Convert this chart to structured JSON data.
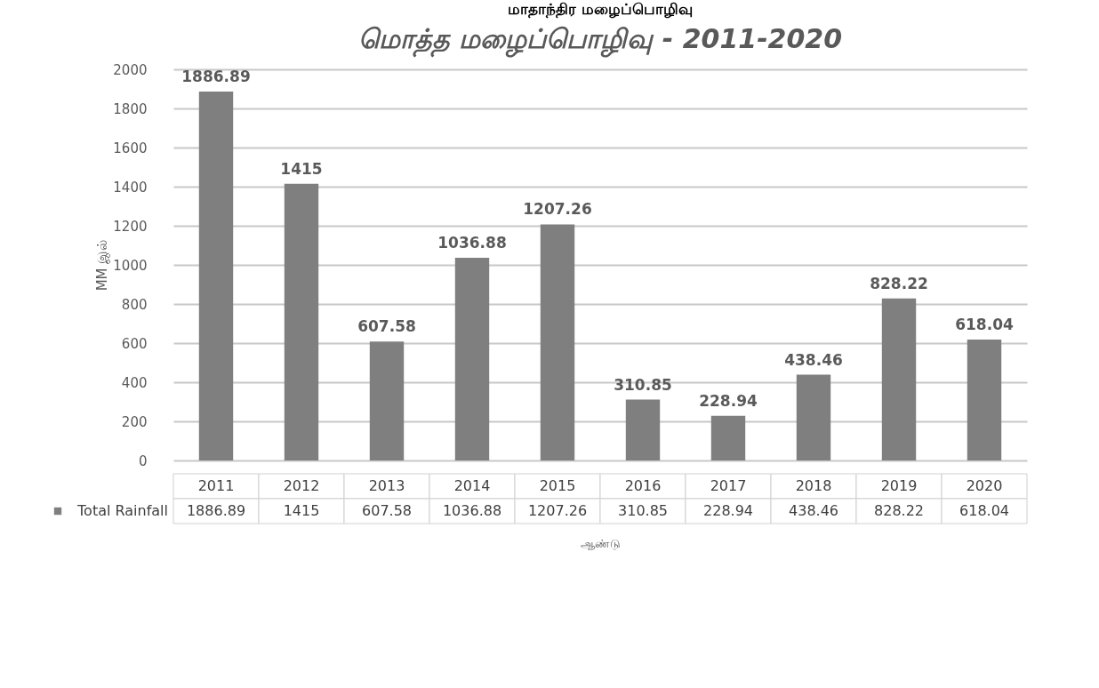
{
  "chart_data": {
    "type": "bar",
    "title": "மொத்த மழைப்பொழிவு - 2011-2020",
    "annotations": [
      "மாதாந்திர மழைப்பொழிவு"
    ],
    "xlabel": "ஆண்டு",
    "ylabel": "MM இல்",
    "categories": [
      "2011",
      "2012",
      "2013",
      "2014",
      "2015",
      "2016",
      "2017",
      "2018",
      "2019",
      "2020"
    ],
    "series": [
      {
        "name": "Total Rainfall",
        "color": "#7f7f7f",
        "values": [
          1886.89,
          1415,
          607.58,
          1036.88,
          1207.26,
          310.85,
          228.94,
          438.46,
          828.22,
          618.04
        ]
      }
    ],
    "ylim": [
      0,
      2000
    ],
    "yticks": [
      0,
      200,
      400,
      600,
      800,
      1000,
      1200,
      1400,
      1600,
      1800,
      2000
    ],
    "value_labels": [
      "1886.89",
      "1415",
      "607.58",
      "1036.88",
      "1207.26",
      "310.85",
      "228.94",
      "438.46",
      "828.22",
      "618.04"
    ],
    "grid": "y",
    "data_labels": true,
    "legend": "bottom"
  }
}
